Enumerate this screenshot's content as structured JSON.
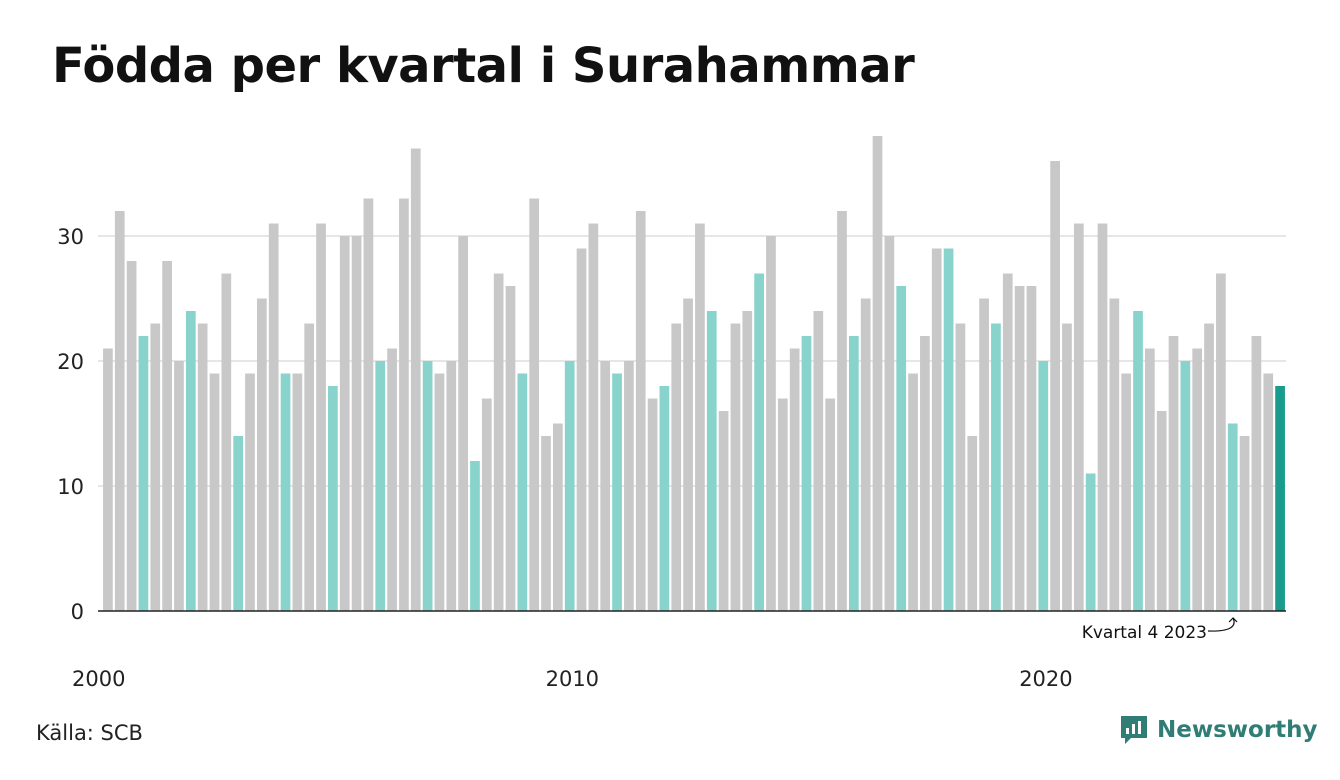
{
  "title": "Födda per kvartal i Surahammar",
  "source": "Källa: SCB",
  "brand": "Newsworthy",
  "colors": {
    "bar_default": "#c8c8c8",
    "bar_q4": "#88d3cb",
    "bar_highlight": "#1a9c8c",
    "grid": "#dddddd",
    "axis": "#222222",
    "brand": "#2f7d74"
  },
  "chart_data": {
    "type": "bar",
    "title": "Födda per kvartal i Surahammar",
    "xlabel": "",
    "ylabel": "",
    "ylim": [
      0,
      38
    ],
    "yticks": [
      0,
      10,
      20,
      30
    ],
    "xtick_labels": [
      "2000",
      "2010",
      "2020"
    ],
    "grid": true,
    "start_year": 2000,
    "values": [
      21,
      32,
      28,
      22,
      23,
      28,
      20,
      24,
      23,
      19,
      27,
      14,
      19,
      25,
      31,
      19,
      19,
      23,
      31,
      18,
      30,
      30,
      33,
      20,
      21,
      33,
      37,
      20,
      19,
      20,
      30,
      12,
      17,
      27,
      26,
      19,
      33,
      14,
      15,
      20,
      29,
      31,
      20,
      19,
      20,
      32,
      17,
      18,
      23,
      25,
      31,
      24,
      16,
      23,
      24,
      27,
      30,
      17,
      21,
      22,
      24,
      17,
      32,
      22,
      25,
      38,
      30,
      26,
      19,
      22,
      29,
      29,
      23,
      14,
      25,
      23,
      27,
      26,
      26,
      20,
      36,
      23,
      31,
      11,
      31,
      25,
      19,
      24,
      21,
      16,
      22,
      20,
      21,
      23,
      27,
      15,
      14,
      22,
      19,
      18
    ],
    "annotation": {
      "text": "Kvartal 4 2023",
      "target_index": 99
    }
  }
}
